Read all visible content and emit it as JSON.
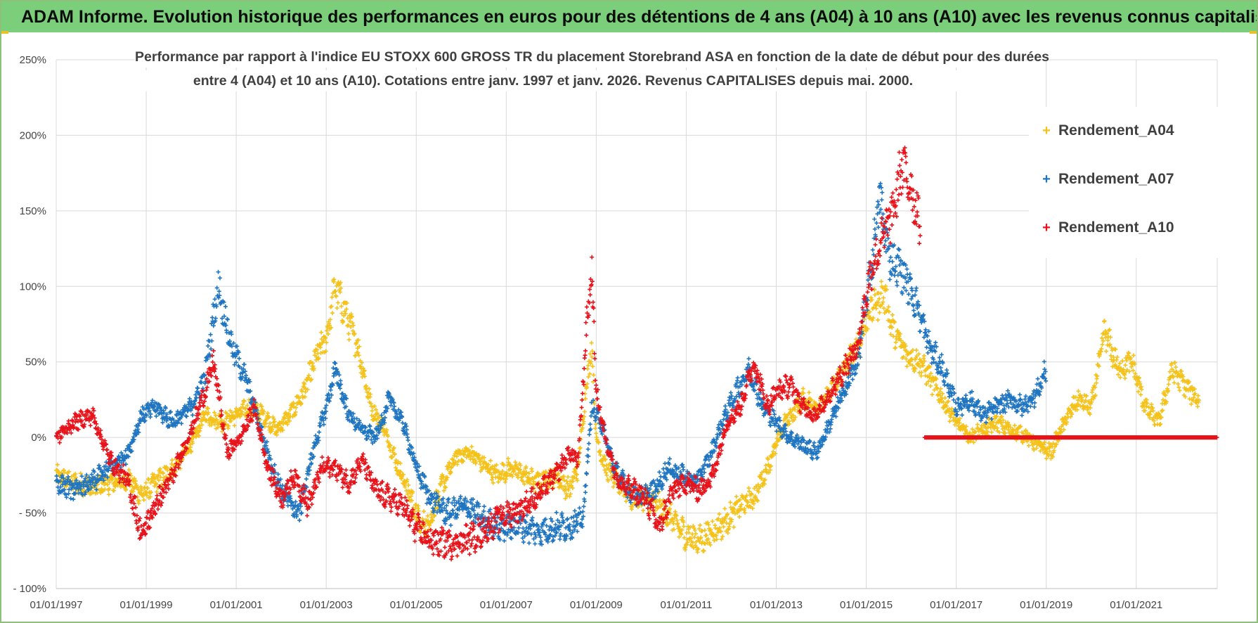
{
  "header": {
    "banner_text": "ADAM Informe. Evolution historique des performances en euros pour des détentions de 4 ans (A04) à 10 ans (A10) avec les revenus connus capitalisés"
  },
  "chart_data": {
    "type": "scatter",
    "title_line1": "Performance par rapport à l'indice EU STOXX 600 GROSS TR  du placement Storebrand ASA en fonction de la date de début pour des durées",
    "title_line2": "entre 4 (A04) et 10 ans (A10).  Cotations entre janv. 1997 et janv. 2026. Revenus CAPITALISES depuis mai. 2000.",
    "x_range": [
      1997.0,
      2022.8
    ],
    "ylim": [
      -100,
      250
    ],
    "y_ticks": [
      250,
      200,
      150,
      100,
      50,
      0,
      -50,
      -100
    ],
    "y_tick_labels": [
      "250%",
      "200%",
      "150%",
      "100%",
      "50%",
      "0%",
      "- 50%",
      "- 100%"
    ],
    "x_ticks": [
      1997,
      1999,
      2001,
      2003,
      2005,
      2007,
      2009,
      2011,
      2013,
      2015,
      2017,
      2019,
      2021
    ],
    "x_tick_labels": [
      "01/01/1997",
      "01/01/1999",
      "01/01/2001",
      "01/01/2003",
      "01/01/2005",
      "01/01/2007",
      "01/01/2009",
      "01/01/2011",
      "01/01/2013",
      "01/01/2015",
      "01/01/2017",
      "01/01/2019",
      "01/01/2021"
    ],
    "grid": true,
    "legend_position": "top-right",
    "series": [
      {
        "name": "Rendement_A04",
        "color": "#f5c21b",
        "keypoints": [
          [
            1997.0,
            -25
          ],
          [
            1997.4,
            -30
          ],
          [
            1997.8,
            -33
          ],
          [
            1998.2,
            -30
          ],
          [
            1998.6,
            -28
          ],
          [
            1998.9,
            -38
          ],
          [
            1999.2,
            -30
          ],
          [
            1999.6,
            -20
          ],
          [
            2000.0,
            -5
          ],
          [
            2000.3,
            15
          ],
          [
            2000.7,
            10
          ],
          [
            2001.0,
            15
          ],
          [
            2001.3,
            20
          ],
          [
            2001.6,
            15
          ],
          [
            2001.9,
            5
          ],
          [
            2002.2,
            15
          ],
          [
            2002.5,
            30
          ],
          [
            2002.8,
            55
          ],
          [
            2003.0,
            65
          ],
          [
            2003.2,
            100
          ],
          [
            2003.4,
            85
          ],
          [
            2003.7,
            60
          ],
          [
            2004.0,
            20
          ],
          [
            2004.3,
            5
          ],
          [
            2004.6,
            -20
          ],
          [
            2004.9,
            -40
          ],
          [
            2005.1,
            -60
          ],
          [
            2005.3,
            -55
          ],
          [
            2005.6,
            -30
          ],
          [
            2005.9,
            -12
          ],
          [
            2006.2,
            -10
          ],
          [
            2006.5,
            -18
          ],
          [
            2006.8,
            -25
          ],
          [
            2007.1,
            -20
          ],
          [
            2007.4,
            -25
          ],
          [
            2007.7,
            -30
          ],
          [
            2008.1,
            -25
          ],
          [
            2008.4,
            -35
          ],
          [
            2008.6,
            -20
          ],
          [
            2008.8,
            40
          ],
          [
            2008.9,
            60
          ],
          [
            2009.0,
            0
          ],
          [
            2009.2,
            -20
          ],
          [
            2009.5,
            -30
          ],
          [
            2009.8,
            -40
          ],
          [
            2010.1,
            -40
          ],
          [
            2010.4,
            -45
          ],
          [
            2010.7,
            -55
          ],
          [
            2011.0,
            -65
          ],
          [
            2011.3,
            -68
          ],
          [
            2011.6,
            -62
          ],
          [
            2011.9,
            -55
          ],
          [
            2012.2,
            -45
          ],
          [
            2012.5,
            -40
          ],
          [
            2012.8,
            -20
          ],
          [
            2013.0,
            -5
          ],
          [
            2013.2,
            10
          ],
          [
            2013.6,
            25
          ],
          [
            2014.0,
            20
          ],
          [
            2014.4,
            40
          ],
          [
            2014.8,
            60
          ],
          [
            2015.1,
            85
          ],
          [
            2015.4,
            95
          ],
          [
            2015.6,
            70
          ],
          [
            2015.9,
            55
          ],
          [
            2016.2,
            50
          ],
          [
            2016.5,
            35
          ],
          [
            2016.8,
            20
          ],
          [
            2017.0,
            10
          ],
          [
            2017.3,
            0
          ],
          [
            2017.6,
            5
          ],
          [
            2017.9,
            10
          ],
          [
            2018.2,
            5
          ],
          [
            2018.5,
            2
          ],
          [
            2018.8,
            -5
          ],
          [
            2019.1,
            -10
          ],
          [
            2019.4,
            10
          ],
          [
            2019.7,
            25
          ],
          [
            2020.0,
            20
          ],
          [
            2020.3,
            70
          ],
          [
            2020.6,
            45
          ],
          [
            2020.9,
            50
          ],
          [
            2021.2,
            20
          ],
          [
            2021.5,
            10
          ],
          [
            2021.8,
            45
          ],
          [
            2022.2,
            30
          ],
          [
            2022.4,
            25
          ]
        ]
      },
      {
        "name": "Rendement_A07",
        "color": "#1f75c0",
        "keypoints": [
          [
            1997.0,
            -30
          ],
          [
            1997.4,
            -35
          ],
          [
            1997.8,
            -30
          ],
          [
            1998.2,
            -20
          ],
          [
            1998.6,
            -10
          ],
          [
            1998.9,
            15
          ],
          [
            1999.2,
            20
          ],
          [
            1999.6,
            10
          ],
          [
            2000.0,
            20
          ],
          [
            2000.3,
            40
          ],
          [
            2000.6,
            100
          ],
          [
            2000.9,
            60
          ],
          [
            2001.2,
            40
          ],
          [
            2001.5,
            10
          ],
          [
            2001.8,
            -20
          ],
          [
            2002.1,
            -40
          ],
          [
            2002.4,
            -50
          ],
          [
            2002.7,
            -10
          ],
          [
            2003.0,
            20
          ],
          [
            2003.2,
            45
          ],
          [
            2003.5,
            15
          ],
          [
            2003.8,
            5
          ],
          [
            2004.1,
            0
          ],
          [
            2004.4,
            25
          ],
          [
            2004.7,
            10
          ],
          [
            2005.0,
            -20
          ],
          [
            2005.3,
            -40
          ],
          [
            2005.7,
            -50
          ],
          [
            2006.1,
            -45
          ],
          [
            2006.5,
            -55
          ],
          [
            2006.9,
            -60
          ],
          [
            2007.3,
            -58
          ],
          [
            2007.7,
            -62
          ],
          [
            2008.1,
            -60
          ],
          [
            2008.4,
            -58
          ],
          [
            2008.7,
            -55
          ],
          [
            2008.9,
            20
          ],
          [
            2009.1,
            10
          ],
          [
            2009.4,
            -20
          ],
          [
            2009.7,
            -35
          ],
          [
            2010.0,
            -40
          ],
          [
            2010.3,
            -35
          ],
          [
            2010.6,
            -20
          ],
          [
            2010.9,
            -25
          ],
          [
            2011.2,
            -30
          ],
          [
            2011.5,
            -15
          ],
          [
            2011.8,
            10
          ],
          [
            2012.1,
            30
          ],
          [
            2012.4,
            45
          ],
          [
            2012.7,
            20
          ],
          [
            2013.0,
            10
          ],
          [
            2013.3,
            0
          ],
          [
            2013.6,
            -5
          ],
          [
            2013.9,
            -10
          ],
          [
            2014.2,
            10
          ],
          [
            2014.5,
            30
          ],
          [
            2014.8,
            50
          ],
          [
            2015.1,
            110
          ],
          [
            2015.3,
            160
          ],
          [
            2015.5,
            120
          ],
          [
            2015.8,
            110
          ],
          [
            2016.1,
            90
          ],
          [
            2016.4,
            60
          ],
          [
            2016.7,
            45
          ],
          [
            2017.0,
            20
          ],
          [
            2017.3,
            25
          ],
          [
            2017.6,
            15
          ],
          [
            2017.9,
            20
          ],
          [
            2018.2,
            25
          ],
          [
            2018.5,
            20
          ],
          [
            2018.8,
            30
          ],
          [
            2019.0,
            45
          ]
        ]
      },
      {
        "name": "Rendement_A10",
        "color": "#e8131a",
        "keypoints": [
          [
            1997.0,
            0
          ],
          [
            1997.4,
            10
          ],
          [
            1997.8,
            15
          ],
          [
            1998.2,
            -15
          ],
          [
            1998.6,
            -30
          ],
          [
            1998.9,
            -65
          ],
          [
            1999.2,
            -45
          ],
          [
            1999.6,
            -25
          ],
          [
            2000.0,
            5
          ],
          [
            2000.3,
            30
          ],
          [
            2000.5,
            50
          ],
          [
            2000.8,
            -10
          ],
          [
            2001.1,
            0
          ],
          [
            2001.4,
            20
          ],
          [
            2001.7,
            -20
          ],
          [
            2002.0,
            -40
          ],
          [
            2002.3,
            -25
          ],
          [
            2002.6,
            -45
          ],
          [
            2002.9,
            -20
          ],
          [
            2003.2,
            -20
          ],
          [
            2003.5,
            -30
          ],
          [
            2003.8,
            -15
          ],
          [
            2004.1,
            -35
          ],
          [
            2004.4,
            -40
          ],
          [
            2004.7,
            -45
          ],
          [
            2005.0,
            -60
          ],
          [
            2005.3,
            -68
          ],
          [
            2005.7,
            -70
          ],
          [
            2006.1,
            -68
          ],
          [
            2006.5,
            -62
          ],
          [
            2006.9,
            -52
          ],
          [
            2007.3,
            -48
          ],
          [
            2007.7,
            -38
          ],
          [
            2008.1,
            -25
          ],
          [
            2008.4,
            -10
          ],
          [
            2008.6,
            -15
          ],
          [
            2008.8,
            80
          ],
          [
            2008.9,
            110
          ],
          [
            2009.0,
            30
          ],
          [
            2009.2,
            0
          ],
          [
            2009.5,
            -30
          ],
          [
            2009.8,
            -35
          ],
          [
            2010.1,
            -40
          ],
          [
            2010.4,
            -60
          ],
          [
            2010.7,
            -35
          ],
          [
            2011.0,
            -30
          ],
          [
            2011.3,
            -35
          ],
          [
            2011.6,
            -25
          ],
          [
            2011.9,
            10
          ],
          [
            2012.2,
            20
          ],
          [
            2012.5,
            50
          ],
          [
            2012.8,
            20
          ],
          [
            2013.0,
            30
          ],
          [
            2013.3,
            35
          ],
          [
            2013.6,
            20
          ],
          [
            2013.9,
            15
          ],
          [
            2014.2,
            30
          ],
          [
            2014.5,
            45
          ],
          [
            2014.8,
            60
          ],
          [
            2015.1,
            110
          ],
          [
            2015.4,
            135
          ],
          [
            2015.6,
            150
          ],
          [
            2015.8,
            180
          ],
          [
            2016.0,
            165
          ],
          [
            2016.2,
            140
          ]
        ]
      },
      {
        "name": "Rendement_A10 (zero)",
        "color": "#e8131a",
        "keypoints": [
          [
            2016.3,
            0
          ],
          [
            2022.8,
            0
          ]
        ]
      }
    ]
  },
  "legend": {
    "a04": "Rendement_A04",
    "a07": "Rendement_A07",
    "a10": "Rendement_A10",
    "marker": "+",
    "a04_color": "#f5c21b",
    "a07_color": "#1f75c0",
    "a10_color": "#e8131a"
  }
}
